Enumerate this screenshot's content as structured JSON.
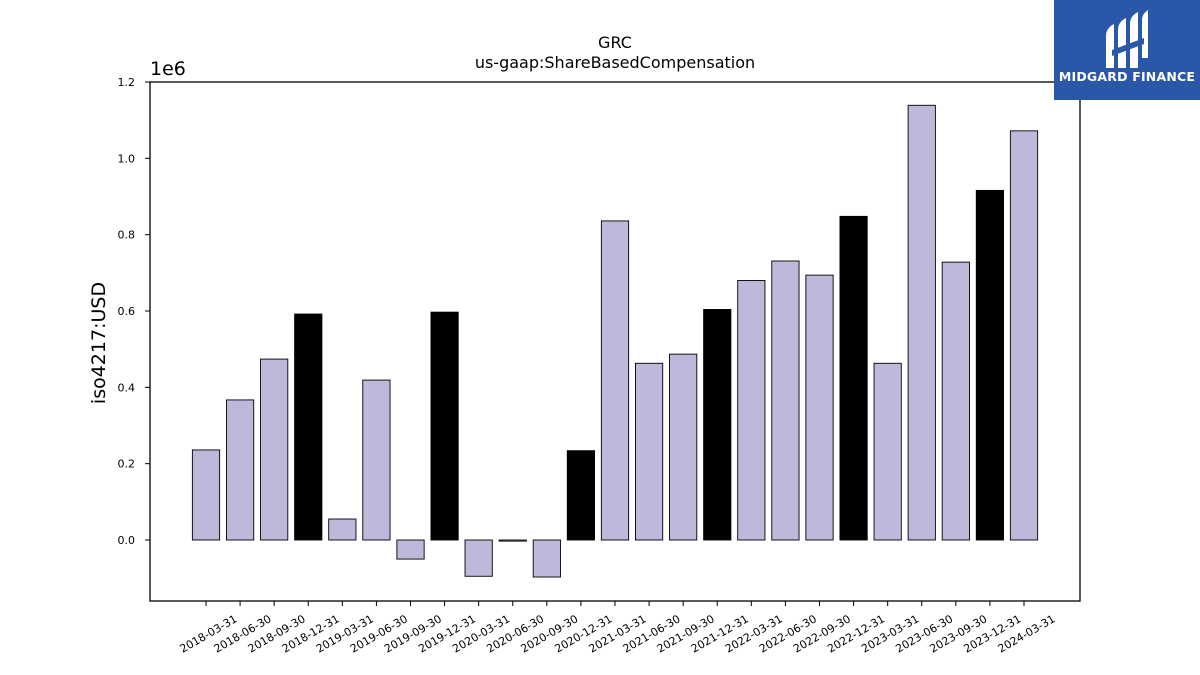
{
  "chart_data": {
    "type": "bar",
    "title": "GRC",
    "subtitle": "us-gaap:ShareBasedCompensation",
    "xlabel": "",
    "ylabel": "iso4217:USD",
    "y_multiplier_label": "1e6",
    "ylim": [
      -0.16,
      1.2
    ],
    "yticks": [
      0.0,
      0.2,
      0.4,
      0.6,
      0.8,
      1.0,
      1.2
    ],
    "ytick_labels": [
      "0.0",
      "0.2",
      "0.4",
      "0.6",
      "0.8",
      "1.0",
      "1.2"
    ],
    "categories": [
      "2018-03-31",
      "2018-06-30",
      "2018-09-30",
      "2018-12-31",
      "2019-03-31",
      "2019-06-30",
      "2019-09-30",
      "2019-12-31",
      "2020-03-31",
      "2020-06-30",
      "2020-09-30",
      "2020-12-31",
      "2021-03-31",
      "2021-06-30",
      "2021-09-30",
      "2021-12-31",
      "2022-03-31",
      "2022-06-30",
      "2022-09-30",
      "2022-12-31",
      "2023-03-31",
      "2023-06-30",
      "2023-09-30",
      "2023-12-31",
      "2024-03-31"
    ],
    "values": [
      0.236,
      0.367,
      0.474,
      0.592,
      0.055,
      0.419,
      -0.05,
      0.597,
      -0.095,
      -0.003,
      -0.097,
      0.234,
      0.836,
      0.463,
      0.487,
      0.604,
      0.68,
      0.731,
      0.694,
      0.848,
      0.463,
      1.139,
      0.728,
      0.916,
      1.072
    ],
    "bar_kinds": [
      "quarter",
      "quarter",
      "quarter",
      "year-end",
      "quarter",
      "quarter",
      "quarter",
      "year-end",
      "quarter",
      "quarter",
      "quarter",
      "year-end",
      "quarter",
      "quarter",
      "quarter",
      "year-end",
      "quarter",
      "quarter",
      "quarter",
      "year-end",
      "quarter",
      "quarter",
      "quarter",
      "year-end",
      "quarter"
    ],
    "colors": {
      "quarter": "#bcb9da",
      "year-end": "#000000",
      "edge": "#000000"
    },
    "grid": false,
    "legend": "none"
  },
  "logo": {
    "text": "MIDGARD FINANCE",
    "background": "#2b57a8"
  }
}
